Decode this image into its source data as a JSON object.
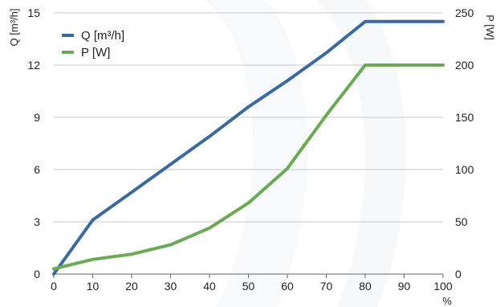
{
  "chart_data": {
    "type": "line",
    "x": [
      0,
      10,
      20,
      30,
      40,
      50,
      60,
      70,
      80,
      90,
      100
    ],
    "xlabel": "%",
    "xlim": [
      0,
      100
    ],
    "x_ticks": [
      "0",
      "10",
      "20",
      "30",
      "40",
      "50",
      "60",
      "70",
      "80",
      "90",
      "100"
    ],
    "y_left": {
      "label": "Q [m³/h]",
      "lim": [
        0,
        15
      ],
      "ticks": [
        "0",
        "3",
        "6",
        "9",
        "12",
        "15"
      ]
    },
    "y_right": {
      "label": "P [W]",
      "lim": [
        0,
        250
      ],
      "ticks": [
        "0",
        "50",
        "100",
        "150",
        "200",
        "250"
      ]
    },
    "grid": true,
    "legend_position": "top-left",
    "series": [
      {
        "name": "Q [m³/h]",
        "axis": "left",
        "color": "#3a6aa0",
        "points": [
          [
            0,
            0
          ],
          [
            10,
            3.1
          ],
          [
            20,
            4.7
          ],
          [
            30,
            6.3
          ],
          [
            40,
            7.9
          ],
          [
            50,
            9.6
          ],
          [
            60,
            11.1
          ],
          [
            70,
            12.7
          ],
          [
            80,
            14.5
          ],
          [
            90,
            14.5
          ],
          [
            100,
            14.5
          ]
        ]
      },
      {
        "name": "P [W]",
        "axis": "right",
        "color": "#6aaa55",
        "points": [
          [
            0,
            5
          ],
          [
            10,
            14
          ],
          [
            20,
            19
          ],
          [
            30,
            28
          ],
          [
            40,
            44
          ],
          [
            50,
            68
          ],
          [
            60,
            101
          ],
          [
            70,
            152
          ],
          [
            80,
            200
          ],
          [
            90,
            200
          ],
          [
            100,
            200
          ]
        ]
      }
    ]
  }
}
